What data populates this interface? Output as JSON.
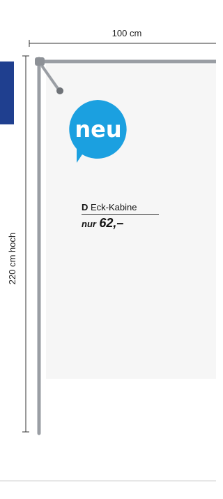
{
  "dimensions": {
    "width": "100 cm",
    "height": "220 cm hoch"
  },
  "badge": "neu",
  "product": {
    "letter": "D",
    "name": "Eck-Kabine",
    "price_prefix": "nur",
    "price": "62,–"
  }
}
